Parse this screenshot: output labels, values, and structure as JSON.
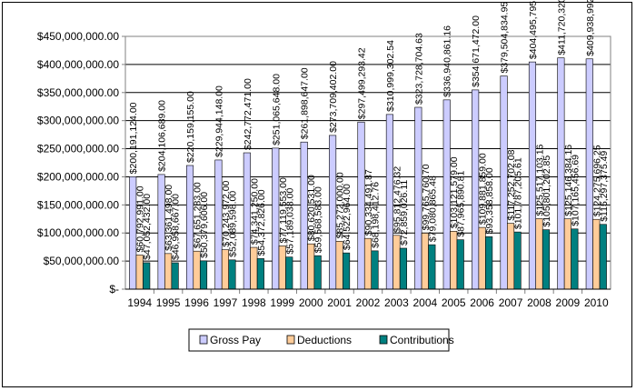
{
  "chart_data": {
    "type": "bar",
    "categories": [
      "1994",
      "1995",
      "1996",
      "1997",
      "1998",
      "1999",
      "2000",
      "2001",
      "2002",
      "2003",
      "2004",
      "2005",
      "2006",
      "2007",
      "2008",
      "2009",
      "2010"
    ],
    "series": [
      {
        "name": "Gross Pay",
        "color": "#CCCCFF",
        "values": [
          200191124.0,
          204106689.0,
          220159155.0,
          229944148.0,
          242772471.0,
          251065648.0,
          261898647.0,
          273709402.0,
          297499293.42,
          310999302.54,
          323728704.63,
          336940861.16,
          354671472.0,
          379504834.95,
          404495795.05,
          411720320.75,
          409938992.83
        ],
        "labels": [
          "$200,191,124.00",
          "$204,106,689.00",
          "$220,159,155.00",
          "$229,944,148.00",
          "$242,772,471.00",
          "$251,065,648.00",
          "$261,898,647.00",
          "$273,709,402.00",
          "$297,499,293.42",
          "$310,999,302.54",
          "$323,728,704.63",
          "$336,940,861.16",
          "$354,671,472.00",
          "$379,504,834.95",
          "$404,495,795.05",
          "$411,720,320.75",
          "$409,938,992.83"
        ]
      },
      {
        "name": "Deductions",
        "color": "#FFCC99",
        "values": [
          60792991.0,
          63361498.0,
          67651283.0,
          70243972.0,
          74341250.0,
          77119553.0,
          80620531.0,
          85272000.0,
          90334491.87,
          95812476.32,
          99765760.7,
          103121579.0,
          109881859.0,
          117252702.08,
          125517103.16,
          125146384.16,
          124275696.25
        ],
        "labels": [
          "$60,792,991.00",
          "$63,361,498.00",
          "$67,651,283.00",
          "$70,243,972.00",
          "$74,341,250.00",
          "$77,119,553.00",
          "$80,620,531.00",
          "$85,272,000.00",
          "$90,334,491.87",
          "$95,812,476.32",
          "$99,765,760.70",
          "$103,121,579.00",
          "$109,881,859.00",
          "$117,252,702.08",
          "$125,517,103.16",
          "$125,146,384.16",
          "$124,275,696.25"
        ]
      },
      {
        "name": "Contributions",
        "color": "#008080",
        "values": [
          47052432.0,
          46958667.0,
          50379606.0,
          52089598.0,
          54372826.0,
          57189038.0,
          59568583.0,
          64522964.0,
          68198412.76,
          72859026.11,
          79080865.48,
          87965890.81,
          93358858.0,
          101787205.61,
          105801202.85,
          107165456.69,
          115297375.49
        ],
        "labels": [
          "$47,052,432.00",
          "$46,958,667.00",
          "$50,379,606.00",
          "$52,089,598.00",
          "$54,372,826.00",
          "$57,189,038.00",
          "$59,568,583.00",
          "$64,522,964.00",
          "$68,198,412.76",
          "$72,859,026.11",
          "$79,080,865.48",
          "$87,965,890.81",
          "$93,358,858.00",
          "$101,787,205.61",
          "$105,801,202.85",
          "$107,165,456.69",
          "$115,297,375.49"
        ]
      }
    ],
    "y_ticks": [
      0,
      50000000,
      100000000,
      150000000,
      200000000,
      250000000,
      300000000,
      350000000,
      400000000,
      450000000
    ],
    "y_tick_labels": [
      "$-",
      "$50,000,000.00",
      "$100,000,000.00",
      "$150,000,000.00",
      "$200,000,000.00",
      "$250,000,000.00",
      "$300,000,000.00",
      "$350,000,000.00",
      "$400,000,000.00",
      "$450,000,000.00"
    ],
    "ylim": [
      0,
      450000000
    ],
    "grid": true,
    "legend_position": "bottom",
    "plot_background": "#FFFFFF",
    "title": "",
    "xlabel": "",
    "ylabel": ""
  }
}
